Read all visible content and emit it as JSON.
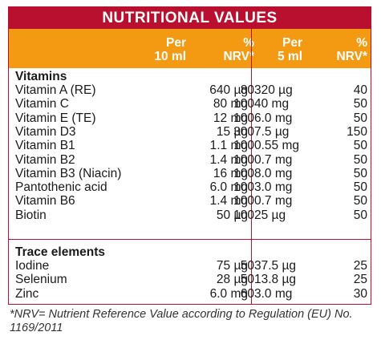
{
  "title": "NUTRITIONAL VALUES",
  "headers": {
    "per10": [
      "Per",
      "10 ml"
    ],
    "nrv10": [
      "%",
      "NRV*"
    ],
    "per5": [
      "Per",
      "5 ml"
    ],
    "nrv5": [
      "%",
      "NRV*"
    ]
  },
  "vitamins": {
    "heading": "Vitamins",
    "rows": [
      [
        "Vitamin A (RE)",
        "640 µg",
        "80",
        "320 µg",
        "40"
      ],
      [
        "Vitamin C",
        "80 mg",
        "100",
        "40 mg",
        "50"
      ],
      [
        "Vitamin E (TE)",
        "12 mg",
        "100",
        "6.0 mg",
        "50"
      ],
      [
        "Vitamin D3",
        "15 µg",
        "300",
        "7.5 µg",
        "150"
      ],
      [
        "Vitamin B1",
        "1.1 mg",
        "100",
        "0.55 mg",
        "50"
      ],
      [
        "Vitamin B2",
        "1.4 mg",
        "100",
        "0.7 mg",
        "50"
      ],
      [
        "Vitamin B3 (Niacin)",
        "16 mg",
        "100",
        "8.0 mg",
        "50"
      ],
      [
        "Pantothenic acid",
        "6.0 mg",
        "100",
        "3.0 mg",
        "50"
      ],
      [
        "Vitamin B6",
        "1.4 mg",
        "100",
        "0.7 mg",
        "50"
      ],
      [
        "Biotin",
        "50 µg",
        "100",
        "25 µg",
        "50"
      ]
    ]
  },
  "trace": {
    "heading": "Trace elements",
    "rows": [
      [
        "Iodine",
        "75 µg",
        "50",
        "37.5 µg",
        "25"
      ],
      [
        "Selenium",
        "28 µg",
        "50",
        "13.8 µg",
        "25"
      ],
      [
        "Zinc",
        "6.0 mg",
        "60",
        "3.0 mg",
        "30"
      ]
    ]
  },
  "footnote": "*NRV= Nutrient Reference Value according to Regulation (EU) No. 1169/2011"
}
